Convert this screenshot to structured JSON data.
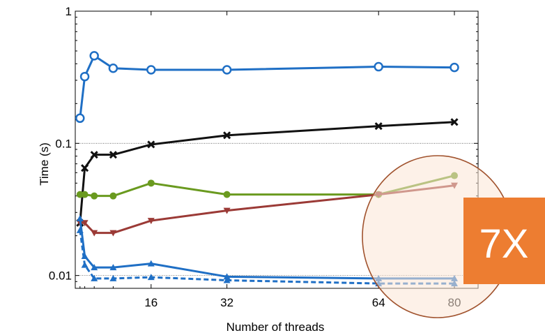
{
  "chart_data": {
    "type": "line",
    "title": "",
    "xlabel": "Number of threads",
    "ylabel": "Time (s)",
    "yscale": "log",
    "ylim": [
      0.008,
      1
    ],
    "xlim": [
      0,
      85
    ],
    "xticks": [
      16,
      32,
      64,
      80
    ],
    "xtick_labels": [
      "16",
      "32",
      "64",
      "80"
    ],
    "minor_xticks": [
      1,
      2,
      4,
      8
    ],
    "yticks": [
      0.01,
      0.1,
      1
    ],
    "ytick_labels": [
      "0.01",
      "0.1",
      "1"
    ],
    "grid": "horizontal dotted at 0.01 and 0.1",
    "x": [
      1,
      2,
      4,
      8,
      16,
      32,
      64,
      80
    ],
    "series": [
      {
        "color": "#1f6fc5",
        "marker": "circle-open",
        "dash": "solid",
        "values": [
          0.155,
          0.32,
          0.46,
          0.37,
          0.36,
          0.36,
          0.38,
          0.375
        ]
      },
      {
        "color": "#111111",
        "marker": "x",
        "dash": "solid",
        "values": [
          0.025,
          0.065,
          0.082,
          0.082,
          0.098,
          0.115,
          0.135,
          0.145
        ]
      },
      {
        "color": "#6a9a1f",
        "marker": "circle-filled",
        "dash": "solid",
        "values": [
          0.041,
          0.041,
          0.04,
          0.04,
          0.05,
          0.041,
          0.041,
          0.057
        ]
      },
      {
        "color": "#9b3a36",
        "marker": "triangle-down",
        "dash": "solid",
        "values": [
          0.025,
          0.025,
          0.021,
          0.021,
          0.026,
          0.031,
          0.041,
          0.048
        ]
      },
      {
        "color": "#1f6fc5",
        "marker": "triangle-up",
        "dash": "solid",
        "values": [
          0.027,
          0.014,
          0.0115,
          0.0115,
          0.0123,
          0.0098,
          0.0095,
          0.0095
        ]
      },
      {
        "color": "#1f6fc5",
        "marker": "triangle-up",
        "dash": "dashed",
        "values": [
          0.022,
          0.012,
          0.0095,
          0.0095,
          0.0097,
          0.0092,
          0.0087,
          0.0087
        ]
      }
    ],
    "annotation": {
      "text": "7X",
      "box_color": "#ed7d31",
      "ellipse_color": "#fbe5d6",
      "ellipse_stroke": "#a0522d"
    }
  }
}
